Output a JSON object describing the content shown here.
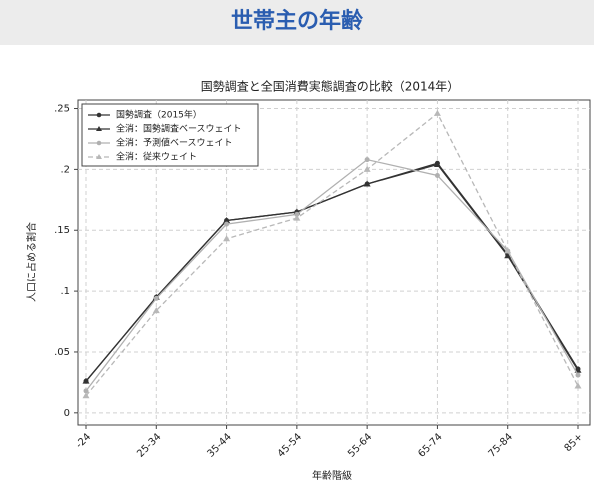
{
  "header": {
    "title": "世帯主の年齢"
  },
  "chart_data": {
    "type": "line",
    "title": "国勢調査と全国消費実態調査の比較（2014年）",
    "x_label": "年齢階級",
    "y_label": "人口に占める割合",
    "categories": [
      "-24",
      "25-34",
      "35-44",
      "45-54",
      "55-64",
      "65-74",
      "75-84",
      "85+"
    ],
    "series": [
      {
        "name": "国勢調査（2015年）",
        "color": "#333333",
        "marker": "circle",
        "dash": false,
        "values": [
          0.026,
          0.095,
          0.158,
          0.165,
          0.188,
          0.205,
          0.13,
          0.036
        ]
      },
      {
        "name": "全消：国勢調査ベースウェイト",
        "color": "#333333",
        "marker": "triangle",
        "dash": false,
        "values": [
          0.026,
          0.095,
          0.158,
          0.165,
          0.188,
          0.204,
          0.129,
          0.035
        ]
      },
      {
        "name": "全消：予測値ベースウェイト",
        "color": "#b0b0b0",
        "marker": "circle",
        "dash": false,
        "values": [
          0.018,
          0.094,
          0.155,
          0.163,
          0.208,
          0.195,
          0.133,
          0.031
        ]
      },
      {
        "name": "全消：従来ウェイト",
        "color": "#b8b8b8",
        "marker": "triangle",
        "dash": true,
        "values": [
          0.014,
          0.084,
          0.143,
          0.16,
          0.2,
          0.246,
          0.133,
          0.022
        ]
      }
    ],
    "ylim": [
      -0.01,
      0.257
    ],
    "yticks": [
      0,
      {
        "value": 0.05,
        "label": ".05"
      },
      {
        "value": 0.1,
        "label": ".1"
      },
      {
        "value": 0.15,
        "label": ".15"
      },
      {
        "value": 0.2,
        "label": ".2"
      },
      {
        "value": 0.25,
        "label": ".25"
      }
    ],
    "grid": true,
    "legend": "top-left"
  }
}
